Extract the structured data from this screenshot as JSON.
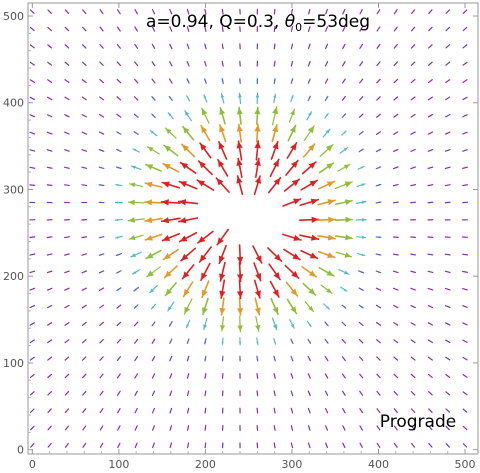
{
  "chart_data": {
    "type": "vector-field",
    "title_parts": {
      "prefix": "a=0.94, Q=0.3, ",
      "theta": "θ",
      "sub": "0",
      "suffix": "=53deg"
    },
    "annotation": "Prograde",
    "xlim": [
      -5,
      515
    ],
    "ylim": [
      -5,
      515
    ],
    "xticks": [
      0,
      100,
      200,
      300,
      400,
      500
    ],
    "yticks": [
      0,
      100,
      200,
      300,
      400,
      500
    ],
    "grid": false,
    "field": {
      "x_samples": [
        0,
        20,
        40,
        60,
        80,
        100,
        120,
        140,
        160,
        180,
        200,
        220,
        240,
        260,
        280,
        300,
        320,
        340,
        360,
        380,
        400,
        420,
        440,
        460,
        480,
        500
      ],
      "y_samples": [
        5,
        25,
        45,
        65,
        85,
        105,
        125,
        145,
        165,
        185,
        205,
        225,
        245,
        265,
        285,
        305,
        325,
        345,
        365,
        385,
        405,
        425,
        445,
        465,
        485,
        505
      ],
      "center": [
        244,
        270
      ],
      "shadow_half_axes": [
        62,
        26
      ],
      "shadow_rotation_deg": -8,
      "max_arrow_radius": 120,
      "far_arrow_length": 6,
      "near_arrow_length": 24
    },
    "colors": {
      "far": "#8e2bb5",
      "mid1": "#4a66d6",
      "mid2": "#55b8d0",
      "mid3": "#8fbf3a",
      "mid4": "#e39a2b",
      "near": "#e02020"
    }
  }
}
